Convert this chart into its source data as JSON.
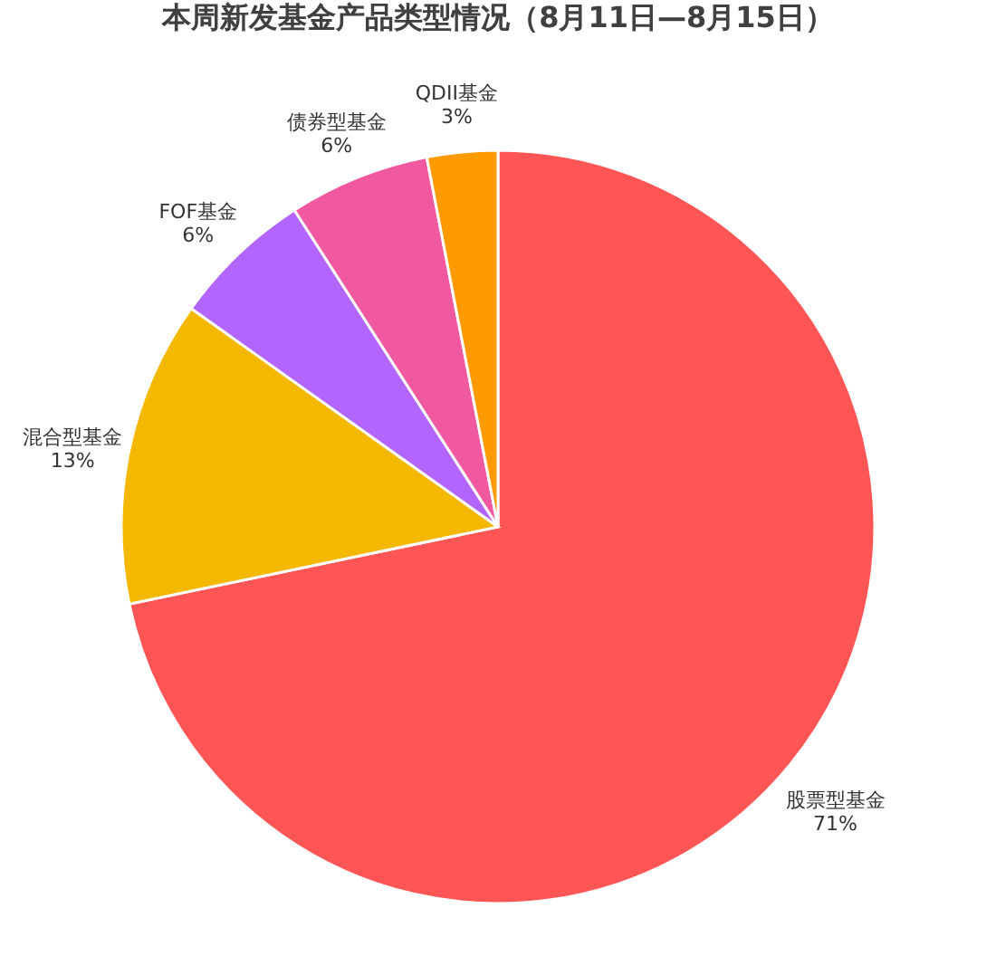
{
  "chart_data": {
    "type": "pie",
    "title": "本周新发基金产品类型情况（8月11日—8月15日）",
    "categories": [
      "股票型基金",
      "混合型基金",
      "FOF基金",
      "债券型基金",
      "QDII基金"
    ],
    "values": [
      71,
      13,
      6,
      6,
      3
    ],
    "value_labels": [
      "71%",
      "13%",
      "6%",
      "6%",
      "3%"
    ],
    "colors": [
      "#ff5555",
      "#f5b800",
      "#b266ff",
      "#f0589f",
      "#ff9a00"
    ]
  }
}
